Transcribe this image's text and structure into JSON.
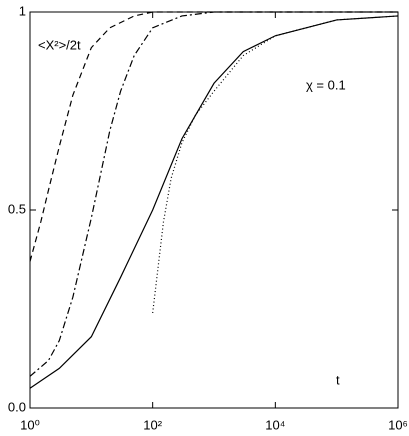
{
  "chart_data": {
    "type": "line",
    "annotations": [
      "<X²>/2t",
      "χ = 0.1",
      "t"
    ],
    "xscale": "log",
    "xlim": [
      1,
      1000000
    ],
    "xticks": [
      {
        "value": 1,
        "label": "10⁰"
      },
      {
        "value": 100,
        "label": "10²"
      },
      {
        "value": 10000,
        "label": "10⁴"
      },
      {
        "value": 1000000,
        "label": "10⁶"
      }
    ],
    "ylim": [
      0,
      1
    ],
    "yticks": [
      {
        "value": 0,
        "label": "0.0"
      },
      0.5,
      1
    ],
    "series": [
      {
        "color": "#000000",
        "style": "dashed",
        "x": [
          1,
          1.5,
          2,
          3,
          5,
          10,
          20,
          50,
          100,
          1000,
          1000000
        ],
        "values": [
          0.37,
          0.47,
          0.55,
          0.66,
          0.79,
          0.91,
          0.96,
          0.99,
          1.0,
          1.0,
          1.0
        ]
      },
      {
        "color": "#000000",
        "style": "dashdot",
        "x": [
          1,
          2,
          3,
          5,
          10,
          20,
          30,
          50,
          100,
          300,
          1000,
          1000000
        ],
        "values": [
          0.08,
          0.12,
          0.17,
          0.28,
          0.48,
          0.7,
          0.8,
          0.89,
          0.96,
          0.99,
          1.0,
          1.0
        ]
      },
      {
        "color": "#000000",
        "style": "solid",
        "x": [
          1,
          3,
          10,
          30,
          100,
          300,
          1000,
          3000,
          10000,
          100000,
          1000000
        ],
        "values": [
          0.05,
          0.1,
          0.18,
          0.33,
          0.5,
          0.68,
          0.82,
          0.9,
          0.94,
          0.98,
          0.99
        ]
      },
      {
        "color": "#000000",
        "style": "dotted",
        "x": [
          100,
          150,
          200,
          300,
          500,
          1000,
          3000,
          10000,
          100000,
          1000000
        ],
        "values": [
          0.24,
          0.47,
          0.58,
          0.67,
          0.74,
          0.8,
          0.89,
          0.94,
          0.98,
          0.99
        ]
      }
    ]
  }
}
